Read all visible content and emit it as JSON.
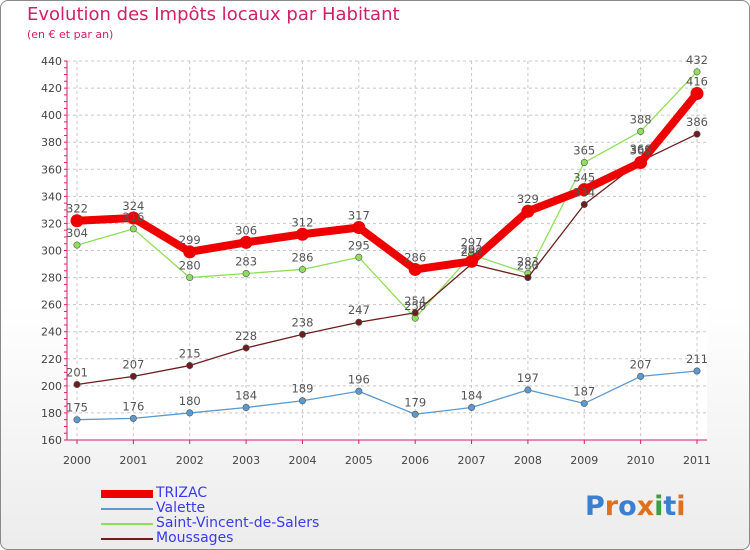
{
  "header": {
    "title": "Evolution des Impôts locaux par Habitant",
    "subtitle": "(en € et par an)"
  },
  "logo": {
    "text": "Proxiti",
    "colors": [
      "#3a7fd0",
      "#e0701c",
      "#3a7fd0",
      "#e0701c",
      "#3aa040",
      "#3a7fd0",
      "#e0701c"
    ]
  },
  "colors": {
    "title": "#d0206a",
    "axis": "#d0206a",
    "grid": "#c8c8c8",
    "legend_text": "#3a3af0"
  },
  "chart_data": {
    "type": "line",
    "x": [
      "2000",
      "2001",
      "2002",
      "2003",
      "2004",
      "2005",
      "2006",
      "2007",
      "2008",
      "2009",
      "2010",
      "2011"
    ],
    "ylim": [
      160,
      440
    ],
    "yticks": [
      160,
      180,
      200,
      220,
      240,
      260,
      280,
      300,
      320,
      340,
      360,
      380,
      400,
      420,
      440
    ],
    "grid": true,
    "legend_position": "bottom-left",
    "series": [
      {
        "name": "TRIZAC",
        "values": [
          322,
          324,
          299,
          306,
          312,
          317,
          286,
          292,
          329,
          345,
          365,
          416
        ],
        "color": "#ee0000",
        "thick": true
      },
      {
        "name": "Valette",
        "values": [
          175,
          176,
          180,
          184,
          189,
          196,
          179,
          184,
          197,
          187,
          207,
          211
        ],
        "color": "#5a9ad0",
        "thick": false
      },
      {
        "name": "Saint-Vincent-de-Salers",
        "values": [
          304,
          316,
          280,
          283,
          286,
          295,
          250,
          297,
          283,
          365,
          388,
          432
        ],
        "color": "#8ee05a",
        "thick": false
      },
      {
        "name": "Moussages",
        "values": [
          201,
          207,
          215,
          228,
          238,
          247,
          254,
          290,
          280,
          334,
          366,
          386
        ],
        "color": "#6e1e1e",
        "thick": false
      }
    ]
  }
}
